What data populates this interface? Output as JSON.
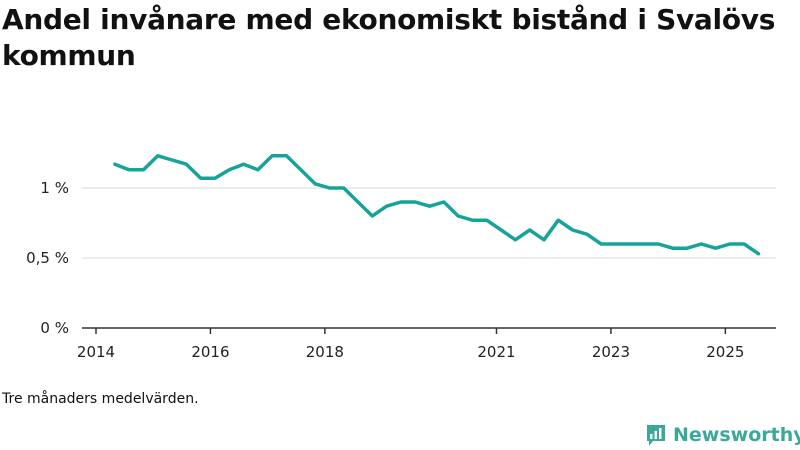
{
  "title": "Andel invånare med ekonomiskt bistånd i Svalövs kommun",
  "note": "Tre månaders medelvärden.",
  "brand": {
    "name": "Newsworthy",
    "color": "#3aa99a"
  },
  "colors": {
    "line": "#16a39a",
    "grid": "#d9d9d9",
    "axis": "#333333"
  },
  "chart_data": {
    "type": "line",
    "title": "Andel invånare med ekonomiskt bistånd i Svalövs kommun",
    "xlabel": "",
    "ylabel": "",
    "xlim": [
      2014,
      2026.2
    ],
    "ylim": [
      0,
      1.45
    ],
    "x_ticks": [
      {
        "value": 2014,
        "label": "2014"
      },
      {
        "value": 2016,
        "label": "2016"
      },
      {
        "value": 2018,
        "label": "2018"
      },
      {
        "value": 2021,
        "label": "2021"
      },
      {
        "value": 2023,
        "label": "2023"
      },
      {
        "value": 2025,
        "label": "2025"
      }
    ],
    "y_ticks": [
      {
        "value": 0,
        "label": "0 %"
      },
      {
        "value": 0.5,
        "label": "0,5 %"
      },
      {
        "value": 1,
        "label": "1 %"
      }
    ],
    "grid": true,
    "series": [
      {
        "name": "Andel invånare med ekonomiskt bistånd",
        "x": [
          2014.33,
          2014.58,
          2014.83,
          2015.08,
          2015.33,
          2015.58,
          2015.83,
          2016.08,
          2016.33,
          2016.58,
          2016.83,
          2017.08,
          2017.33,
          2017.58,
          2017.83,
          2018.08,
          2018.33,
          2018.58,
          2018.83,
          2019.08,
          2019.33,
          2019.58,
          2019.83,
          2020.08,
          2020.33,
          2020.58,
          2020.83,
          2021.08,
          2021.33,
          2021.58,
          2021.83,
          2022.08,
          2022.33,
          2022.58,
          2022.83,
          2023.08,
          2023.33,
          2023.58,
          2023.83,
          2024.08,
          2024.33,
          2024.58,
          2024.83,
          2025.08,
          2025.33,
          2025.58
        ],
        "values": [
          1.17,
          1.13,
          1.13,
          1.23,
          1.2,
          1.17,
          1.07,
          1.07,
          1.13,
          1.17,
          1.13,
          1.23,
          1.23,
          1.13,
          1.03,
          1.0,
          1.0,
          0.9,
          0.8,
          0.87,
          0.9,
          0.9,
          0.87,
          0.9,
          0.8,
          0.77,
          0.77,
          0.7,
          0.63,
          0.7,
          0.63,
          0.77,
          0.7,
          0.67,
          0.6,
          0.6,
          0.6,
          0.6,
          0.6,
          0.57,
          0.57,
          0.6,
          0.57,
          0.6,
          0.6,
          0.53
        ]
      }
    ]
  }
}
